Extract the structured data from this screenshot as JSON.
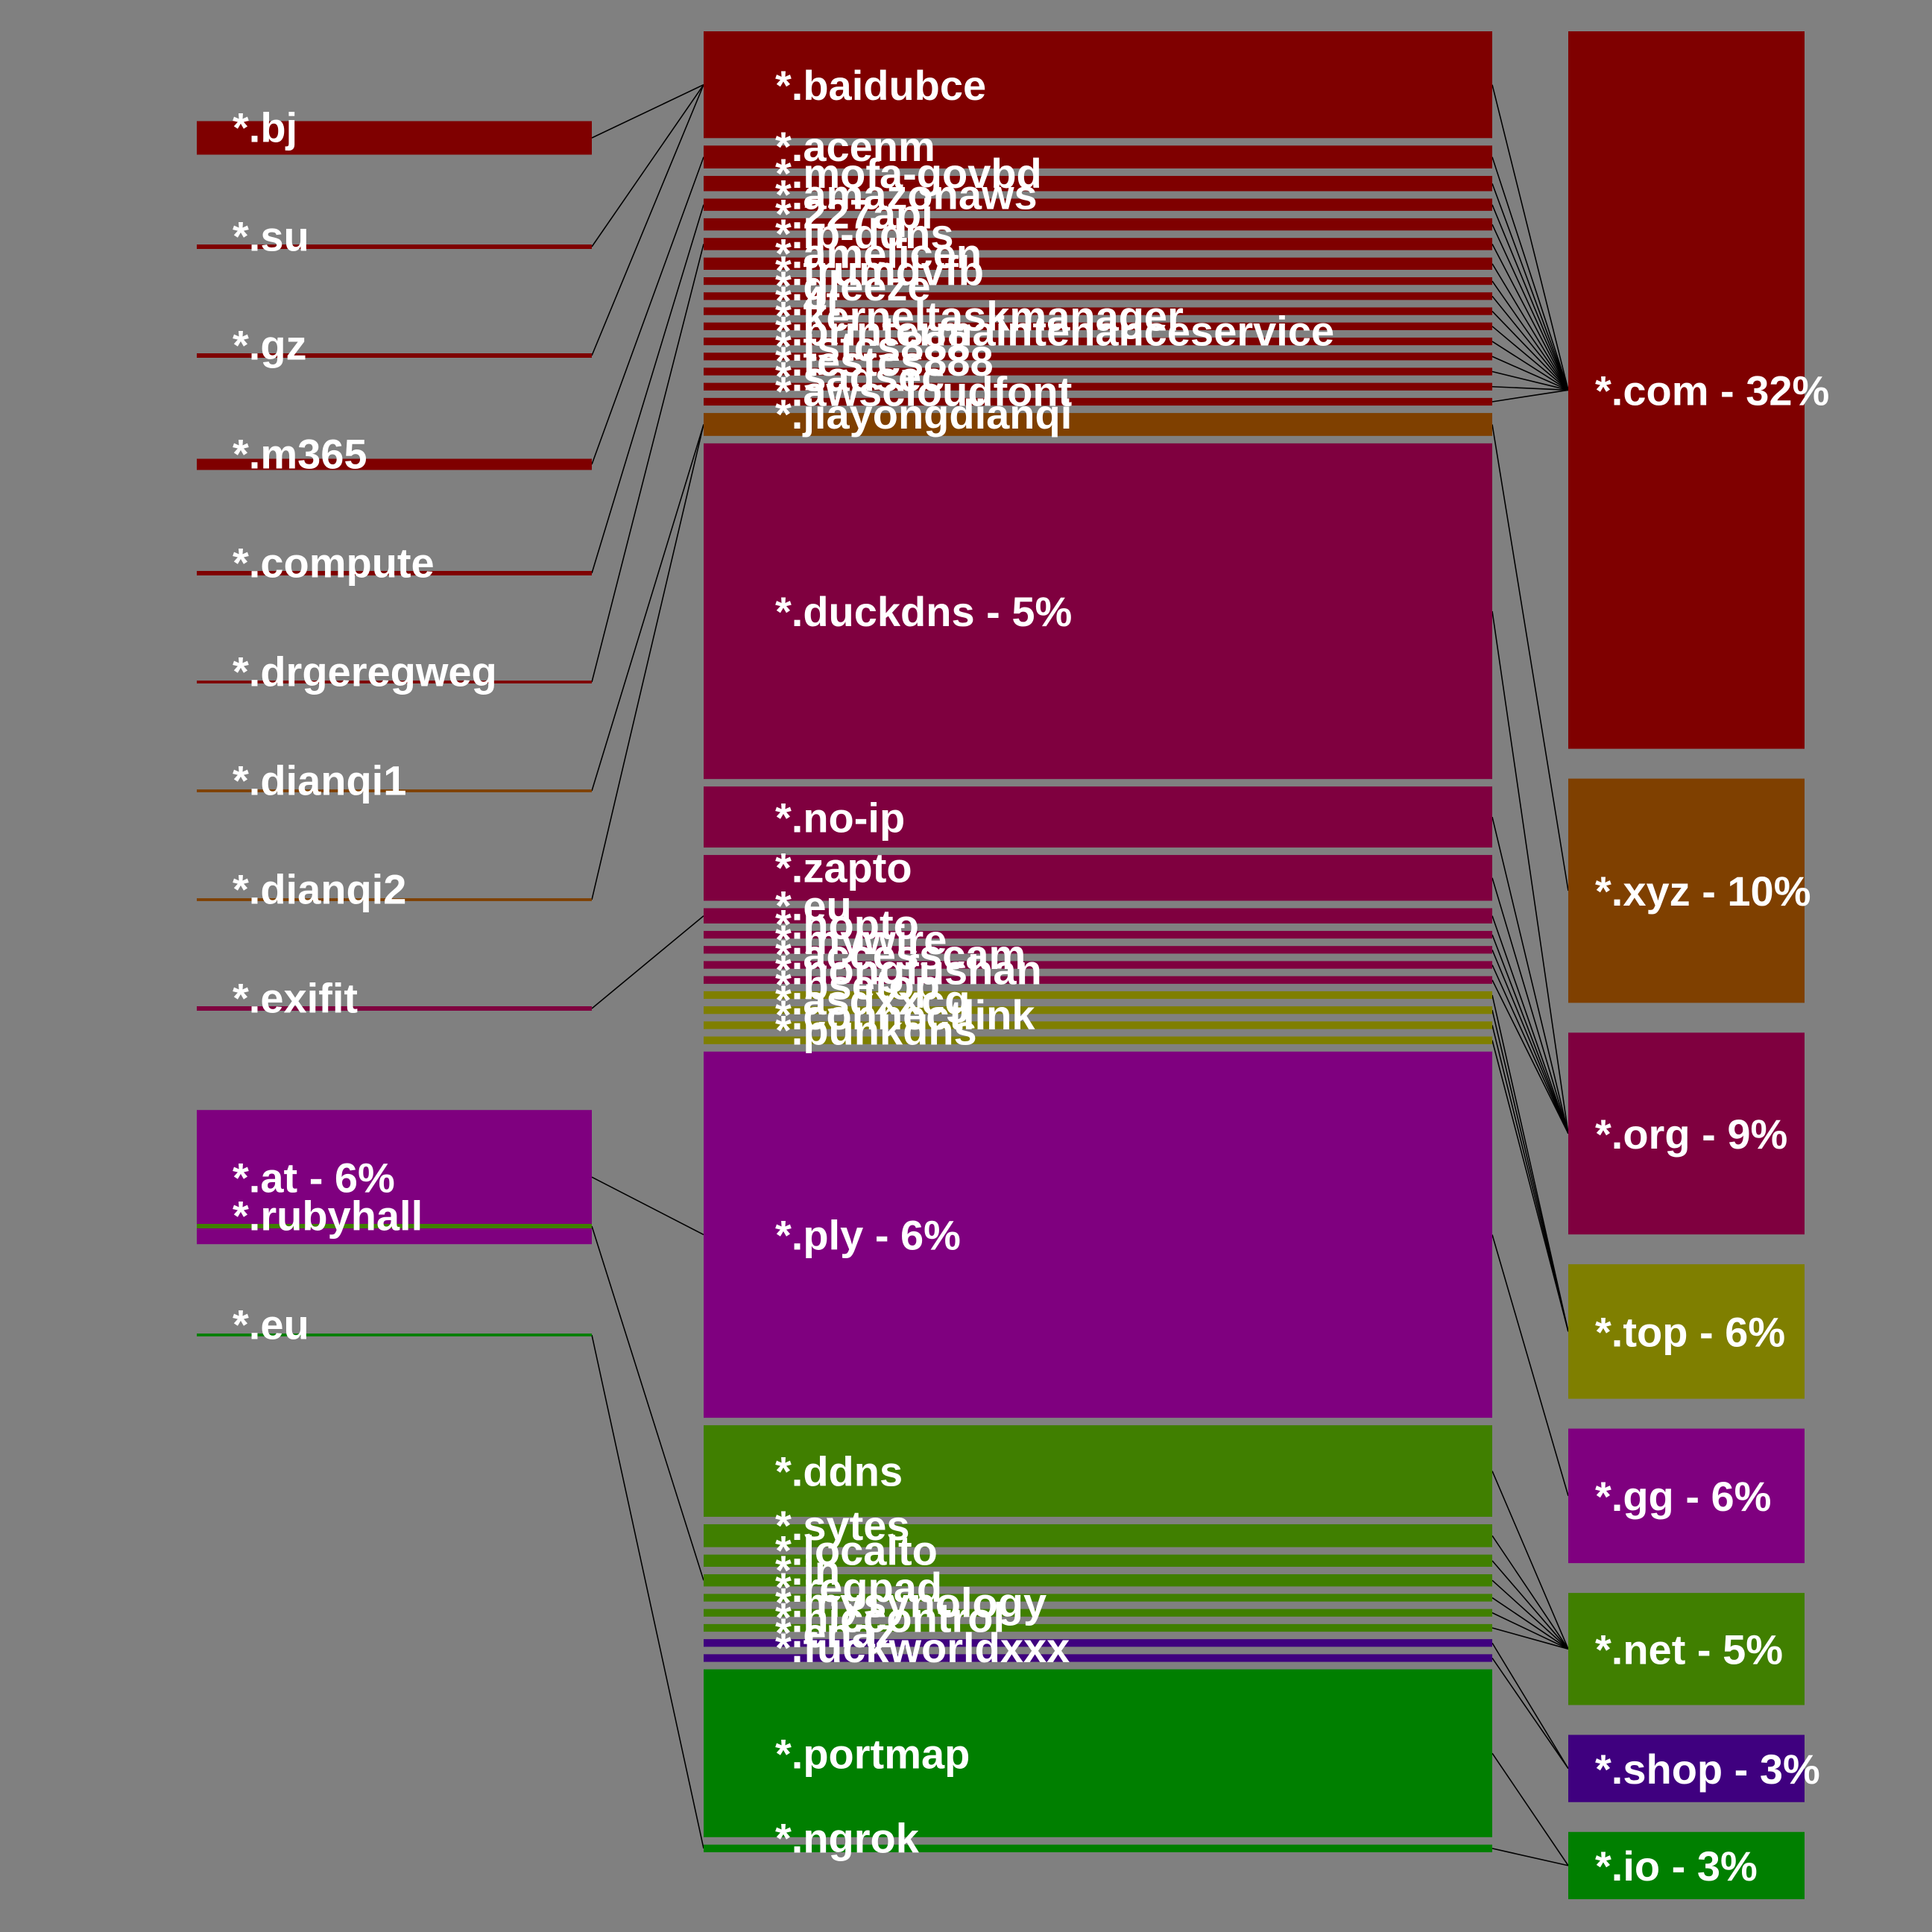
{
  "colors": {
    "background": "#808080",
    "dark_red": "#7f0000",
    "brown": "#7f4000",
    "crimson": "#7f003f",
    "olive": "#7f7f00",
    "purple": "#7f007f",
    "green": "#407f00",
    "dark_green": "#007f00",
    "indigo": "#3f007f",
    "link": "#000000",
    "label": "#ffffff"
  },
  "columns": {
    "left": [
      {
        "label": "*.bj",
        "color": "#7f0000",
        "weight": 6
      },
      {
        "label": "*.su",
        "color": "#7f0000",
        "weight": 0.8
      },
      {
        "label": "*.gz",
        "color": "#7f0000",
        "weight": 0.8
      },
      {
        "label": "*.m365",
        "color": "#7f0000",
        "weight": 2
      },
      {
        "label": "*.compute",
        "color": "#7f0000",
        "weight": 0.8
      },
      {
        "label": "*.drgeregweg",
        "color": "#7f0000",
        "weight": 0.5
      },
      {
        "label": "*.dianqi1",
        "color": "#7f4000",
        "weight": 0.5
      },
      {
        "label": "*.dianqi2",
        "color": "#7f4000",
        "weight": 0.5
      },
      {
        "label": "*.exifit",
        "color": "#7f003f",
        "weight": 0.8
      },
      {
        "label": "*.at - 6%",
        "color": "#7f007f",
        "weight": 24
      },
      {
        "label": "*.rubyhall",
        "color": "#407f00",
        "weight": 0.8
      },
      {
        "label": "*.eu",
        "color": "#007f00",
        "weight": 0.5
      }
    ],
    "middle": [
      {
        "label": "*.baidubce",
        "color": "#7f0000",
        "weight": 7
      },
      {
        "label": "*.acenm",
        "color": "#7f0000",
        "weight": 1.5
      },
      {
        "label": "*.mofa-govbd",
        "color": "#7f0000",
        "weight": 1
      },
      {
        "label": "*.amazonaws",
        "color": "#7f0000",
        "weight": 0.8
      },
      {
        "label": "*.227api",
        "color": "#7f0000",
        "weight": 0.8
      },
      {
        "label": "*.ip-ddns",
        "color": "#7f0000",
        "weight": 0.8
      },
      {
        "label": "*.amelicen",
        "color": "#7f0000",
        "weight": 0.8
      },
      {
        "label": "*.trumdvfb",
        "color": "#7f0000",
        "weight": 0.5
      },
      {
        "label": "*.gleeze",
        "color": "#7f0000",
        "weight": 0.5
      },
      {
        "label": "*.4t",
        "color": "#7f0000",
        "weight": 0.5
      },
      {
        "label": "*.kerneltaskmanager",
        "color": "#7f0000",
        "weight": 0.5
      },
      {
        "label": "*.printermaintenanceservice",
        "color": "#7f0000",
        "weight": 0.5
      },
      {
        "label": "*.tstcs888",
        "color": "#7f0000",
        "weight": 0.5
      },
      {
        "label": "*.testcs888",
        "color": "#7f0000",
        "weight": 0.5
      },
      {
        "label": "*.sadsec",
        "color": "#7f0000",
        "weight": 0.5
      },
      {
        "label": "*.awscloudfont",
        "color": "#7f0000",
        "weight": 0.5
      },
      {
        "label": "*.jiayongdianqi",
        "color": "#7f4000",
        "weight": 1.5
      },
      {
        "label": "*.duckdns - 5%",
        "color": "#7f003f",
        "weight": 22
      },
      {
        "label": "*.no-ip",
        "color": "#7f003f",
        "weight": 4
      },
      {
        "label": "*.zapto",
        "color": "#7f003f",
        "weight": 3
      },
      {
        "label": "*.eu",
        "color": "#7f003f",
        "weight": 1
      },
      {
        "label": "*.hopto",
        "color": "#7f003f",
        "weight": 0.5
      },
      {
        "label": "*.mywire",
        "color": "#7f003f",
        "weight": 0.5
      },
      {
        "label": "*.accesscam",
        "color": "#7f003f",
        "weight": 0.5
      },
      {
        "label": "*.nongfushan",
        "color": "#7f003f",
        "weight": 0.5
      },
      {
        "label": "*.bsetop",
        "color": "#7f7f00",
        "weight": 0.5
      },
      {
        "label": "*.asdxxcg",
        "color": "#7f7f00",
        "weight": 0.5
      },
      {
        "label": "*.connectlink",
        "color": "#7f7f00",
        "weight": 0.5
      },
      {
        "label": "*.punkdns",
        "color": "#7f7f00",
        "weight": 0.5
      },
      {
        "label": "*.ply - 6%",
        "color": "#7f007f",
        "weight": 24
      },
      {
        "label": "*.ddns",
        "color": "#407f00",
        "weight": 6
      },
      {
        "label": "*.sytes",
        "color": "#407f00",
        "weight": 1.5
      },
      {
        "label": "*.localto",
        "color": "#407f00",
        "weight": 0.8
      },
      {
        "label": "*.in",
        "color": "#407f00",
        "weight": 0.8
      },
      {
        "label": "*.regpad",
        "color": "#407f00",
        "weight": 0.5
      },
      {
        "label": "*.mysynology",
        "color": "#407f00",
        "weight": 0.5
      },
      {
        "label": "*.niccontrol",
        "color": "#407f00",
        "weight": 0.5
      },
      {
        "label": "*.enaz",
        "color": "#3f007f",
        "weight": 0.5
      },
      {
        "label": "*.fuckworldxxx",
        "color": "#3f007f",
        "weight": 0.5
      },
      {
        "label": "*.portmap",
        "color": "#007f00",
        "weight": 11
      },
      {
        "label": "*.ngrok",
        "color": "#007f00",
        "weight": 0.5
      }
    ],
    "right": [
      {
        "label": "*.com - 32%",
        "color": "#7f0000",
        "weight": 32
      },
      {
        "label": "*.xyz - 10%",
        "color": "#7f4000",
        "weight": 10
      },
      {
        "label": "*.org - 9%",
        "color": "#7f003f",
        "weight": 9
      },
      {
        "label": "*.top - 6%",
        "color": "#7f7f00",
        "weight": 6
      },
      {
        "label": "*.gg - 6%",
        "color": "#7f007f",
        "weight": 6
      },
      {
        "label": "*.net - 5%",
        "color": "#407f00",
        "weight": 5
      },
      {
        "label": "*.shop - 3%",
        "color": "#3f007f",
        "weight": 3
      },
      {
        "label": "*.io - 3%",
        "color": "#007f00",
        "weight": 3
      }
    ]
  },
  "links": [
    {
      "from": "left.0",
      "to": "middle.0"
    },
    {
      "from": "left.1",
      "to": "middle.0"
    },
    {
      "from": "left.2",
      "to": "middle.0"
    },
    {
      "from": "left.3",
      "to": "middle.1"
    },
    {
      "from": "left.4",
      "to": "middle.3"
    },
    {
      "from": "left.5",
      "to": "middle.5"
    },
    {
      "from": "left.6",
      "to": "middle.16"
    },
    {
      "from": "left.7",
      "to": "middle.16"
    },
    {
      "from": "left.8",
      "to": "middle.20"
    },
    {
      "from": "left.9",
      "to": "middle.29"
    },
    {
      "from": "left.10",
      "to": "middle.33"
    },
    {
      "from": "left.11",
      "to": "middle.40"
    },
    {
      "from": "middle.0",
      "to": "right.0"
    },
    {
      "from": "middle.1",
      "to": "right.0"
    },
    {
      "from": "middle.2",
      "to": "right.0"
    },
    {
      "from": "middle.3",
      "to": "right.0"
    },
    {
      "from": "middle.4",
      "to": "right.0"
    },
    {
      "from": "middle.5",
      "to": "right.0"
    },
    {
      "from": "middle.6",
      "to": "right.0"
    },
    {
      "from": "middle.7",
      "to": "right.0"
    },
    {
      "from": "middle.8",
      "to": "right.0"
    },
    {
      "from": "middle.9",
      "to": "right.0"
    },
    {
      "from": "middle.10",
      "to": "right.0"
    },
    {
      "from": "middle.11",
      "to": "right.0"
    },
    {
      "from": "middle.12",
      "to": "right.0"
    },
    {
      "from": "middle.13",
      "to": "right.0"
    },
    {
      "from": "middle.14",
      "to": "right.0"
    },
    {
      "from": "middle.15",
      "to": "right.0"
    },
    {
      "from": "middle.16",
      "to": "right.1"
    },
    {
      "from": "middle.17",
      "to": "right.2"
    },
    {
      "from": "middle.18",
      "to": "right.2"
    },
    {
      "from": "middle.19",
      "to": "right.2"
    },
    {
      "from": "middle.20",
      "to": "right.2"
    },
    {
      "from": "middle.21",
      "to": "right.2"
    },
    {
      "from": "middle.22",
      "to": "right.2"
    },
    {
      "from": "middle.23",
      "to": "right.2"
    },
    {
      "from": "middle.24",
      "to": "right.2"
    },
    {
      "from": "middle.25",
      "to": "right.3"
    },
    {
      "from": "middle.26",
      "to": "right.3"
    },
    {
      "from": "middle.27",
      "to": "right.3"
    },
    {
      "from": "middle.28",
      "to": "right.3"
    },
    {
      "from": "middle.29",
      "to": "right.4"
    },
    {
      "from": "middle.30",
      "to": "right.5"
    },
    {
      "from": "middle.31",
      "to": "right.5"
    },
    {
      "from": "middle.32",
      "to": "right.5"
    },
    {
      "from": "middle.33",
      "to": "right.5"
    },
    {
      "from": "middle.34",
      "to": "right.5"
    },
    {
      "from": "middle.35",
      "to": "right.5"
    },
    {
      "from": "middle.36",
      "to": "right.5"
    },
    {
      "from": "middle.37",
      "to": "right.6"
    },
    {
      "from": "middle.38",
      "to": "right.6"
    },
    {
      "from": "middle.39",
      "to": "right.7"
    },
    {
      "from": "middle.40",
      "to": "right.7"
    }
  ]
}
